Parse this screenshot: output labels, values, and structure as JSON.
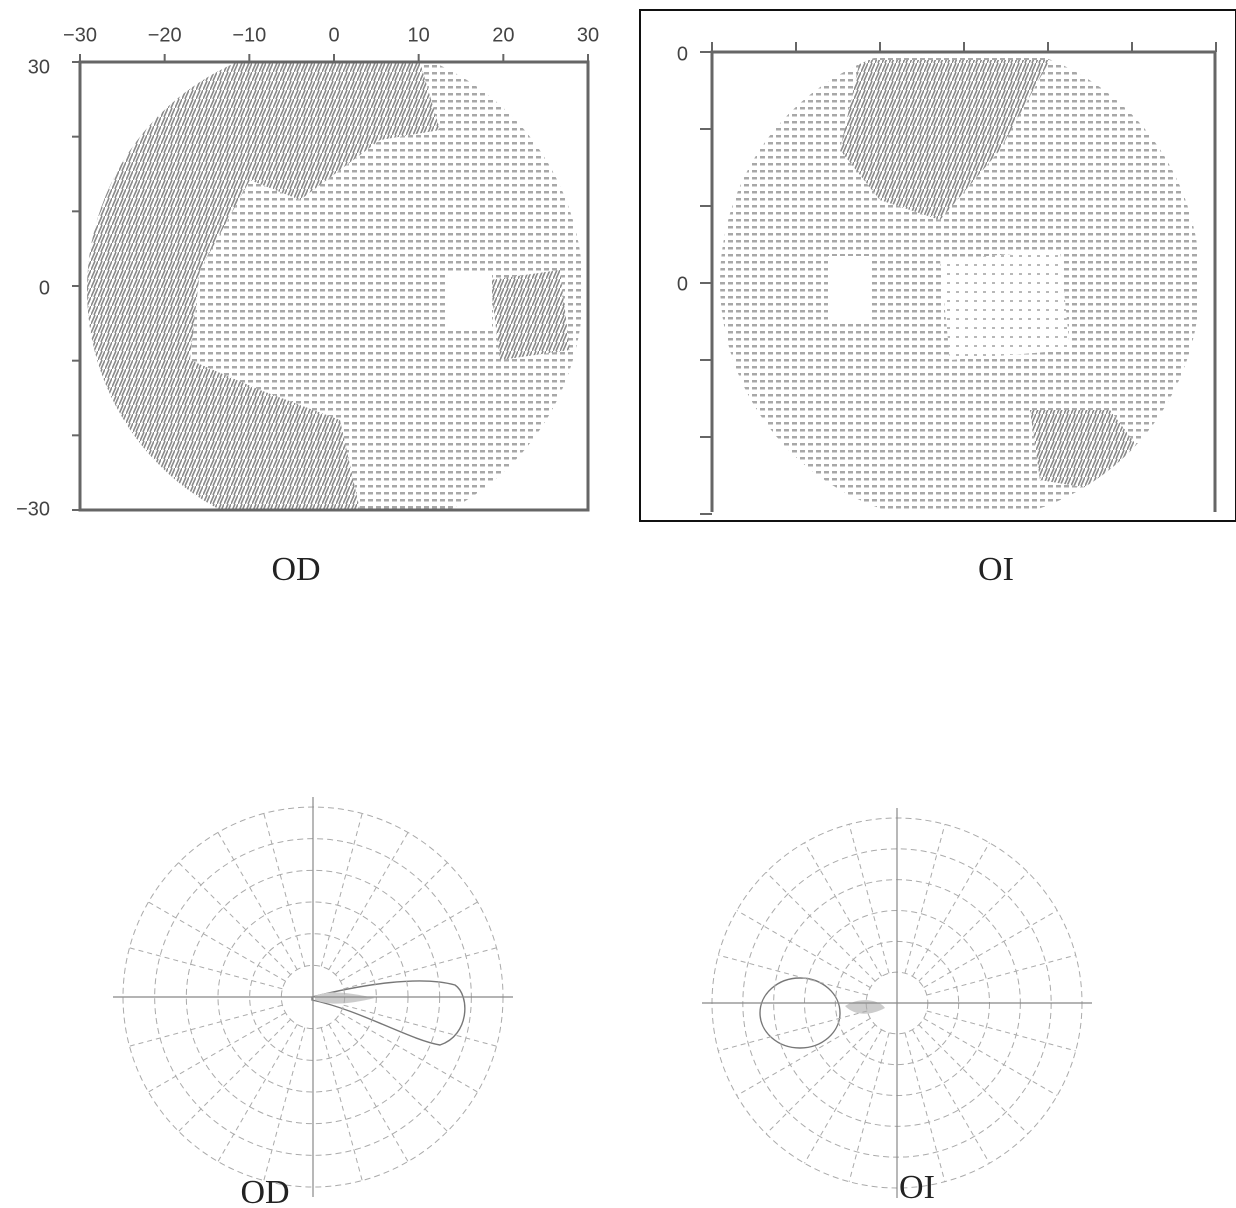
{
  "panels": [
    {
      "caption": "OD",
      "x_ticks": [
        "−30",
        "−20",
        "−10",
        "0",
        "10",
        "20",
        "30"
      ],
      "y_ticks": [
        "30",
        "0",
        "−30"
      ]
    },
    {
      "caption": "OI",
      "y_ticks": [
        "0",
        "0"
      ]
    },
    {
      "caption": "OD"
    },
    {
      "caption": "OI"
    }
  ]
}
